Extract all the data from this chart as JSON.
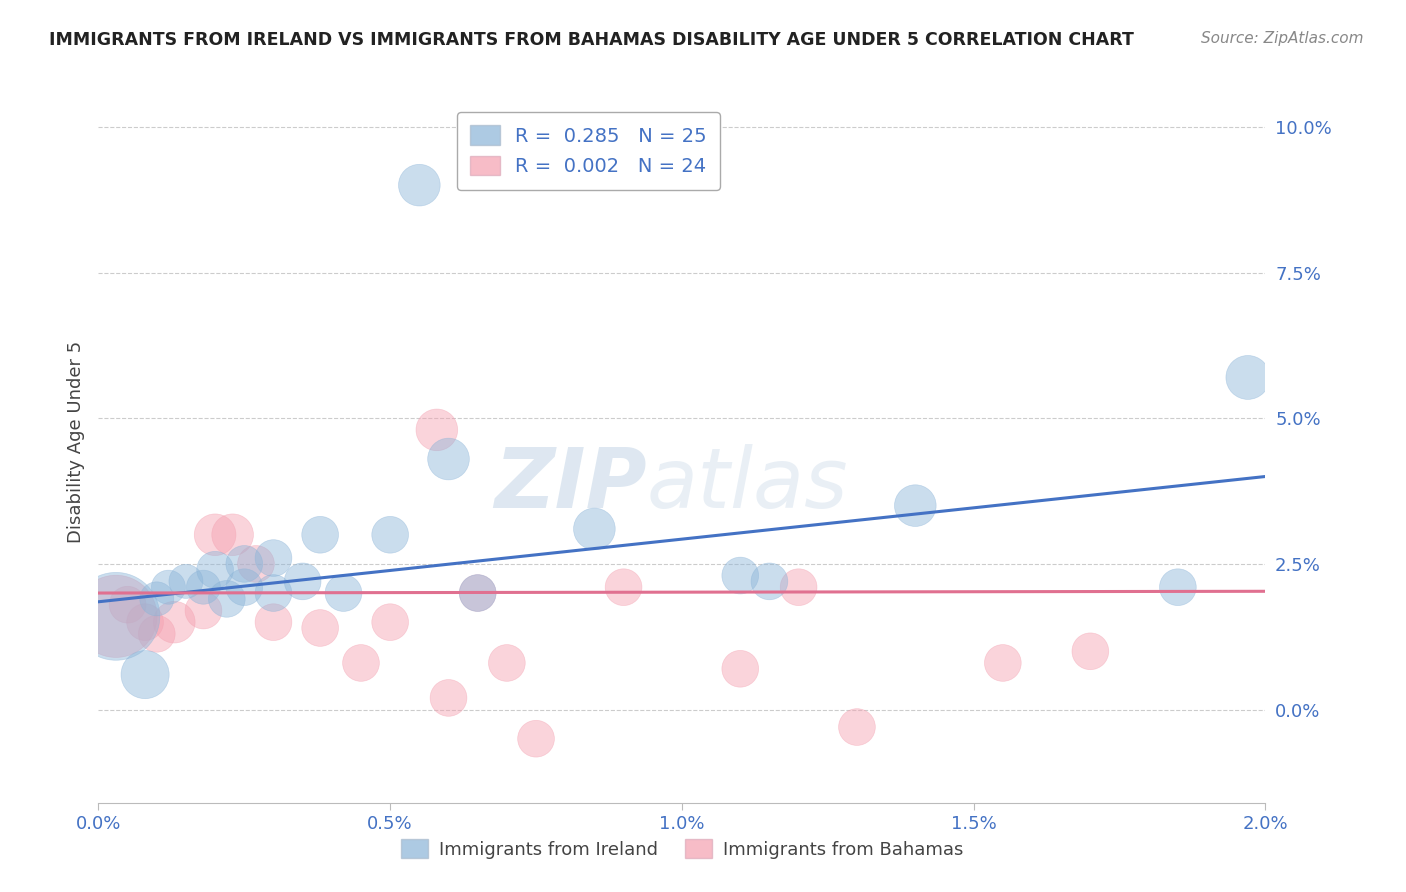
{
  "title": "IMMIGRANTS FROM IRELAND VS IMMIGRANTS FROM BAHAMAS DISABILITY AGE UNDER 5 CORRELATION CHART",
  "source": "Source: ZipAtlas.com",
  "ylabel": "Disability Age Under 5",
  "xlim": [
    0.0,
    0.02
  ],
  "ylim": [
    -0.016,
    0.108
  ],
  "yticks": [
    0.0,
    0.025,
    0.05,
    0.075,
    0.1
  ],
  "ytick_labels": [
    "0.0%",
    "2.5%",
    "5.0%",
    "7.5%",
    "10.0%"
  ],
  "xticks": [
    0.0,
    0.005,
    0.01,
    0.015,
    0.02
  ],
  "xtick_labels": [
    "0.0%",
    "0.5%",
    "1.0%",
    "1.5%",
    "2.0%"
  ],
  "ireland_color": "#8BB4D8",
  "bahamas_color": "#F4A0B0",
  "ireland_R": 0.285,
  "ireland_N": 25,
  "bahamas_R": 0.002,
  "bahamas_N": 24,
  "ireland_x": [
    0.0003,
    0.0008,
    0.001,
    0.0012,
    0.0015,
    0.0018,
    0.002,
    0.0022,
    0.0025,
    0.0025,
    0.003,
    0.003,
    0.0035,
    0.0038,
    0.0042,
    0.005,
    0.0055,
    0.006,
    0.0065,
    0.0085,
    0.011,
    0.0115,
    0.014,
    0.0185,
    0.0197
  ],
  "ireland_y": [
    0.016,
    0.006,
    0.019,
    0.021,
    0.022,
    0.021,
    0.024,
    0.019,
    0.021,
    0.025,
    0.026,
    0.02,
    0.022,
    0.03,
    0.02,
    0.03,
    0.09,
    0.043,
    0.02,
    0.031,
    0.023,
    0.022,
    0.035,
    0.021,
    0.057
  ],
  "ireland_size": [
    4000,
    1200,
    600,
    600,
    600,
    600,
    700,
    700,
    700,
    700,
    700,
    700,
    700,
    700,
    700,
    700,
    900,
    900,
    700,
    900,
    700,
    700,
    900,
    700,
    1000
  ],
  "bahamas_x": [
    0.0003,
    0.0005,
    0.0008,
    0.001,
    0.0013,
    0.0018,
    0.002,
    0.0023,
    0.0027,
    0.003,
    0.0038,
    0.0045,
    0.005,
    0.0058,
    0.006,
    0.0065,
    0.007,
    0.0075,
    0.009,
    0.011,
    0.012,
    0.013,
    0.0155,
    0.017
  ],
  "bahamas_y": [
    0.016,
    0.018,
    0.015,
    0.013,
    0.015,
    0.017,
    0.03,
    0.03,
    0.025,
    0.015,
    0.014,
    0.008,
    0.015,
    0.048,
    0.002,
    0.02,
    0.008,
    -0.005,
    0.021,
    0.007,
    0.021,
    -0.003,
    0.008,
    0.01
  ],
  "bahamas_size": [
    3500,
    700,
    700,
    700,
    900,
    700,
    900,
    900,
    700,
    700,
    700,
    700,
    700,
    900,
    700,
    700,
    700,
    700,
    700,
    700,
    700,
    700,
    700,
    700
  ],
  "watermark_zip": "ZIP",
  "watermark_atlas": "atlas",
  "ireland_line": [
    0.0,
    0.0185,
    0.02,
    0.04
  ],
  "bahamas_line": [
    0.0,
    0.02,
    0.02,
    0.0203
  ],
  "legend_R_ireland": "R =  0.285",
  "legend_N_ireland": "N = 25",
  "legend_R_bahamas": "R =  0.002",
  "legend_N_bahamas": "N = 24",
  "title_color": "#222222",
  "axis_color": "#4472C4",
  "grid_color": "#CCCCCC",
  "ireland_line_color": "#4472C4",
  "bahamas_line_color": "#E07090"
}
